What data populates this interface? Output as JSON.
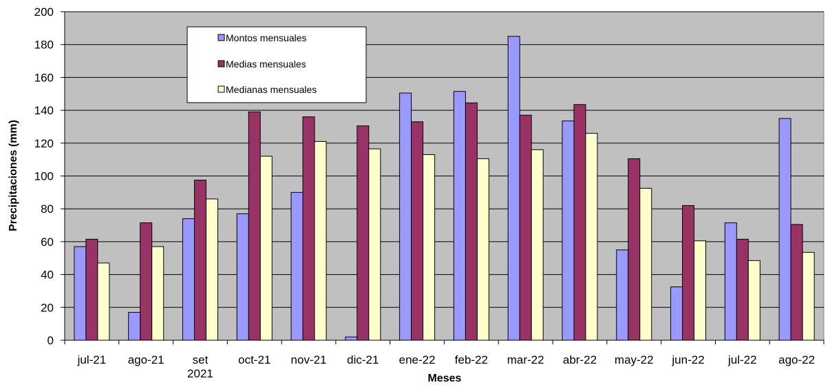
{
  "chart_data": {
    "type": "bar",
    "title": "",
    "xlabel": "Meses",
    "ylabel": "Precipitaciones (mm)",
    "ylim": [
      0,
      200
    ],
    "yticks": [
      0,
      20,
      40,
      60,
      80,
      100,
      120,
      140,
      160,
      180,
      200
    ],
    "grid": true,
    "legend_position": "top-left",
    "categories": [
      [
        "jul-21"
      ],
      [
        "ago-21"
      ],
      [
        "set",
        "2021"
      ],
      [
        "oct-21"
      ],
      [
        "nov-21"
      ],
      [
        "dic-21"
      ],
      [
        "ene-22"
      ],
      [
        "feb-22"
      ],
      [
        "mar-22"
      ],
      [
        "abr-22"
      ],
      [
        "may-22"
      ],
      [
        "jun-22"
      ],
      [
        "jul-22"
      ],
      [
        "ago-22"
      ]
    ],
    "series": [
      {
        "name": "Montos mensuales",
        "color": "#9999ff",
        "values": [
          57,
          17,
          74,
          77,
          90,
          2,
          150.5,
          151.5,
          185,
          133.5,
          55,
          32.5,
          71.5,
          135
        ]
      },
      {
        "name": "Medias mensuales",
        "color": "#993366",
        "values": [
          61.5,
          71.5,
          97.5,
          139,
          136,
          130.5,
          133,
          144.5,
          137,
          143.5,
          110.5,
          82,
          61.5,
          70.5
        ]
      },
      {
        "name": "Medianas mensuales",
        "color": "#ffffcc",
        "values": [
          47,
          57,
          86,
          112,
          121,
          116.5,
          113,
          110.5,
          116,
          126,
          92.5,
          60.5,
          48.5,
          53.5
        ]
      }
    ],
    "colors": {
      "plot_background": "#c0c0c0",
      "gridline": "#000000",
      "bar_outline": "#000000"
    }
  }
}
